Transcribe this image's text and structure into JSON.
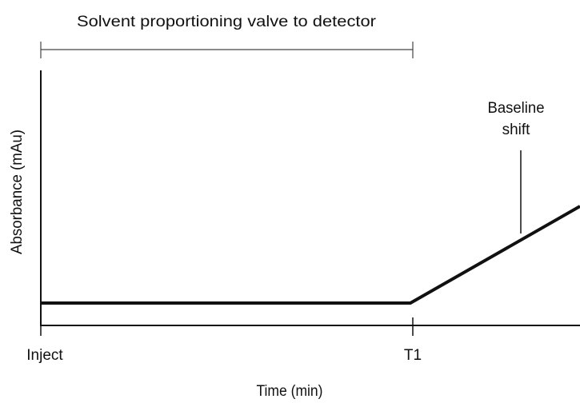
{
  "header": {
    "title": "Solvent proportioning valve to detector"
  },
  "axes": {
    "y_label": "Absorbance (mAu)",
    "x_label": "Time (min)"
  },
  "x_markers": [
    "Inject",
    "T1"
  ],
  "annotation": {
    "lines": [
      "Baseline",
      "shift"
    ]
  }
}
